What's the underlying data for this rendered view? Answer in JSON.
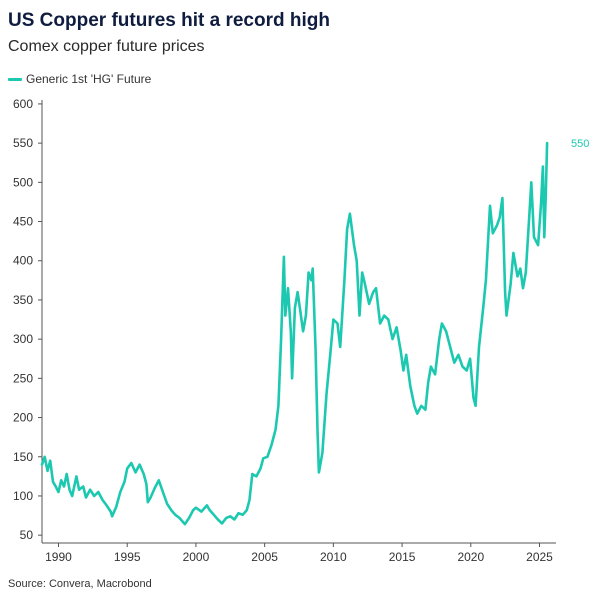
{
  "title": "US Copper futures hit a record high",
  "subtitle": "Comex copper future prices",
  "source": "Source: Convera, Macrobond",
  "colors": {
    "series": "#1cc9b0",
    "axis": "#555555",
    "title": "#0f1c3f"
  },
  "chart_data": {
    "type": "line",
    "title": "US Copper futures hit a record high",
    "subtitle": "Comex copper future prices",
    "xlabel": "",
    "ylabel": "",
    "xlim": [
      1988.8,
      2026.2
    ],
    "ylim": [
      40,
      605
    ],
    "yticks": [
      50,
      100,
      150,
      200,
      250,
      300,
      350,
      400,
      450,
      500,
      550,
      600
    ],
    "xticks": [
      1990,
      1995,
      2000,
      2005,
      2010,
      2015,
      2020,
      2025
    ],
    "grid": false,
    "legend": "top-left",
    "last_value_label": "550",
    "series": [
      {
        "name": "Generic 1st 'HG' Future",
        "color": "#1cc9b0",
        "points": [
          [
            1988.8,
            140
          ],
          [
            1989.0,
            150
          ],
          [
            1989.2,
            132
          ],
          [
            1989.4,
            145
          ],
          [
            1989.6,
            118
          ],
          [
            1989.8,
            112
          ],
          [
            1990.0,
            105
          ],
          [
            1990.2,
            120
          ],
          [
            1990.4,
            112
          ],
          [
            1990.6,
            128
          ],
          [
            1990.8,
            108
          ],
          [
            1991.0,
            100
          ],
          [
            1991.3,
            125
          ],
          [
            1991.5,
            108
          ],
          [
            1991.8,
            112
          ],
          [
            1992.0,
            98
          ],
          [
            1992.3,
            108
          ],
          [
            1992.6,
            100
          ],
          [
            1992.9,
            105
          ],
          [
            1993.2,
            95
          ],
          [
            1993.5,
            88
          ],
          [
            1993.8,
            80
          ],
          [
            1993.9,
            74
          ],
          [
            1994.2,
            86
          ],
          [
            1994.5,
            105
          ],
          [
            1994.8,
            118
          ],
          [
            1995.0,
            135
          ],
          [
            1995.3,
            142
          ],
          [
            1995.6,
            130
          ],
          [
            1995.9,
            140
          ],
          [
            1996.2,
            128
          ],
          [
            1996.4,
            115
          ],
          [
            1996.5,
            92
          ],
          [
            1996.7,
            98
          ],
          [
            1997.0,
            110
          ],
          [
            1997.3,
            120
          ],
          [
            1997.6,
            105
          ],
          [
            1997.9,
            90
          ],
          [
            1998.2,
            82
          ],
          [
            1998.5,
            76
          ],
          [
            1998.8,
            72
          ],
          [
            1999.2,
            64
          ],
          [
            1999.5,
            72
          ],
          [
            1999.8,
            82
          ],
          [
            2000.0,
            85
          ],
          [
            2000.4,
            80
          ],
          [
            2000.8,
            88
          ],
          [
            2001.0,
            82
          ],
          [
            2001.3,
            76
          ],
          [
            2001.6,
            70
          ],
          [
            2001.9,
            65
          ],
          [
            2002.2,
            72
          ],
          [
            2002.5,
            74
          ],
          [
            2002.8,
            70
          ],
          [
            2003.1,
            78
          ],
          [
            2003.4,
            76
          ],
          [
            2003.7,
            82
          ],
          [
            2003.9,
            95
          ],
          [
            2004.1,
            128
          ],
          [
            2004.4,
            125
          ],
          [
            2004.7,
            135
          ],
          [
            2004.9,
            148
          ],
          [
            2005.2,
            150
          ],
          [
            2005.5,
            165
          ],
          [
            2005.8,
            185
          ],
          [
            2006.0,
            215
          ],
          [
            2006.2,
            300
          ],
          [
            2006.4,
            405
          ],
          [
            2006.5,
            330
          ],
          [
            2006.7,
            365
          ],
          [
            2006.9,
            310
          ],
          [
            2007.0,
            250
          ],
          [
            2007.2,
            340
          ],
          [
            2007.4,
            360
          ],
          [
            2007.6,
            335
          ],
          [
            2007.8,
            310
          ],
          [
            2008.0,
            330
          ],
          [
            2008.2,
            385
          ],
          [
            2008.4,
            375
          ],
          [
            2008.5,
            390
          ],
          [
            2008.7,
            290
          ],
          [
            2008.85,
            180
          ],
          [
            2008.95,
            130
          ],
          [
            2009.2,
            155
          ],
          [
            2009.5,
            230
          ],
          [
            2009.8,
            285
          ],
          [
            2010.0,
            325
          ],
          [
            2010.3,
            320
          ],
          [
            2010.5,
            290
          ],
          [
            2010.8,
            375
          ],
          [
            2011.0,
            440
          ],
          [
            2011.2,
            460
          ],
          [
            2011.5,
            420
          ],
          [
            2011.7,
            400
          ],
          [
            2011.9,
            330
          ],
          [
            2012.1,
            385
          ],
          [
            2012.3,
            370
          ],
          [
            2012.6,
            345
          ],
          [
            2012.9,
            360
          ],
          [
            2013.1,
            365
          ],
          [
            2013.4,
            320
          ],
          [
            2013.7,
            330
          ],
          [
            2014.0,
            325
          ],
          [
            2014.3,
            300
          ],
          [
            2014.6,
            315
          ],
          [
            2014.9,
            285
          ],
          [
            2015.1,
            260
          ],
          [
            2015.3,
            280
          ],
          [
            2015.6,
            240
          ],
          [
            2015.9,
            215
          ],
          [
            2016.1,
            205
          ],
          [
            2016.4,
            215
          ],
          [
            2016.7,
            210
          ],
          [
            2016.9,
            245
          ],
          [
            2017.1,
            265
          ],
          [
            2017.4,
            255
          ],
          [
            2017.7,
            300
          ],
          [
            2017.9,
            320
          ],
          [
            2018.2,
            310
          ],
          [
            2018.5,
            290
          ],
          [
            2018.8,
            270
          ],
          [
            2019.1,
            280
          ],
          [
            2019.4,
            265
          ],
          [
            2019.7,
            260
          ],
          [
            2019.95,
            275
          ],
          [
            2020.2,
            225
          ],
          [
            2020.35,
            215
          ],
          [
            2020.6,
            290
          ],
          [
            2020.9,
            340
          ],
          [
            2021.1,
            375
          ],
          [
            2021.4,
            470
          ],
          [
            2021.6,
            435
          ],
          [
            2021.9,
            445
          ],
          [
            2022.1,
            455
          ],
          [
            2022.3,
            480
          ],
          [
            2022.5,
            360
          ],
          [
            2022.6,
            330
          ],
          [
            2022.9,
            370
          ],
          [
            2023.1,
            410
          ],
          [
            2023.4,
            380
          ],
          [
            2023.6,
            390
          ],
          [
            2023.8,
            365
          ],
          [
            2024.0,
            385
          ],
          [
            2024.3,
            470
          ],
          [
            2024.4,
            500
          ],
          [
            2024.6,
            430
          ],
          [
            2024.9,
            420
          ],
          [
            2025.1,
            470
          ],
          [
            2025.25,
            520
          ],
          [
            2025.35,
            430
          ],
          [
            2025.45,
            480
          ],
          [
            2025.55,
            550
          ]
        ]
      }
    ]
  }
}
